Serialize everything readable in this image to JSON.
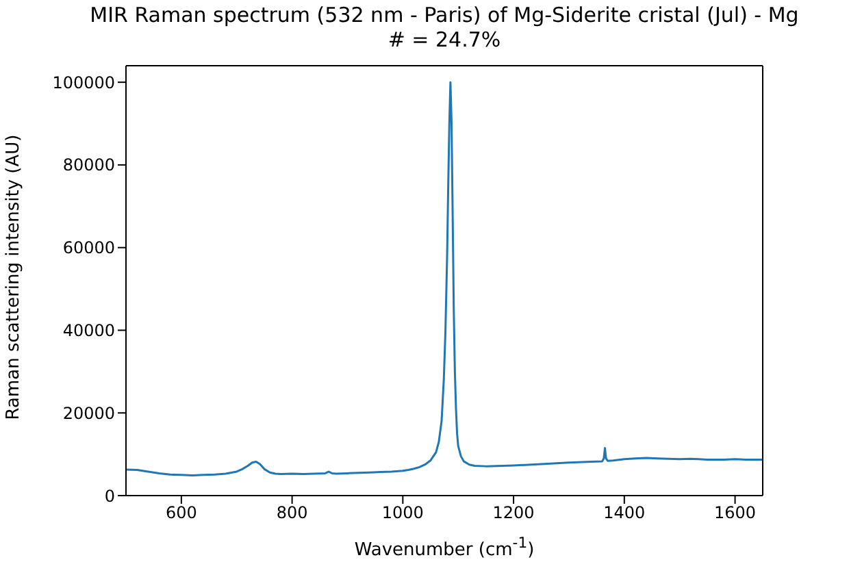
{
  "chart_data": {
    "type": "line",
    "title": "MIR Raman spectrum (532 nm - Paris) of Mg-Siderite cristal (Jul) - Mg\n# = 24.7%",
    "xlabel": "Wavenumber (cm$^{-1}$)",
    "ylabel": "Raman scattering intensity (AU)",
    "x": [
      500,
      520,
      540,
      560,
      580,
      600,
      620,
      640,
      660,
      680,
      700,
      710,
      720,
      728,
      735,
      742,
      750,
      760,
      770,
      780,
      800,
      820,
      840,
      860,
      866,
      872,
      880,
      900,
      920,
      940,
      960,
      980,
      1000,
      1010,
      1020,
      1030,
      1040,
      1050,
      1060,
      1065,
      1070,
      1074,
      1077,
      1080,
      1082,
      1084,
      1086,
      1088,
      1090,
      1092,
      1094,
      1096,
      1098,
      1100,
      1105,
      1110,
      1120,
      1130,
      1150,
      1200,
      1250,
      1300,
      1340,
      1360,
      1363,
      1365,
      1367,
      1370,
      1380,
      1400,
      1420,
      1440,
      1460,
      1480,
      1500,
      1520,
      1550,
      1580,
      1600,
      1620,
      1650
    ],
    "series": [
      {
        "color": "#1f77b4",
        "values": [
          6300,
          6200,
          5800,
          5400,
          5100,
          5000,
          4900,
          5000,
          5100,
          5300,
          5800,
          6400,
          7200,
          8000,
          8200,
          7600,
          6400,
          5600,
          5300,
          5200,
          5300,
          5200,
          5300,
          5400,
          5800,
          5400,
          5300,
          5400,
          5500,
          5600,
          5700,
          5800,
          6000,
          6200,
          6500,
          6900,
          7500,
          8500,
          10500,
          13000,
          18000,
          28000,
          40000,
          58000,
          75000,
          90000,
          100000,
          90000,
          68000,
          45000,
          30000,
          21000,
          15000,
          12000,
          9500,
          8300,
          7500,
          7200,
          7100,
          7300,
          7600,
          8000,
          8200,
          8300,
          9000,
          11500,
          9000,
          8400,
          8500,
          8800,
          9000,
          9100,
          9000,
          8900,
          8800,
          8900,
          8700,
          8700,
          8800,
          8700,
          8700
        ]
      }
    ],
    "xlim": [
      500,
      1650
    ],
    "xticks": [
      600,
      800,
      1000,
      1200,
      1400,
      1600
    ],
    "ylim": [
      0,
      104000
    ],
    "yticks": [
      0,
      20000,
      40000,
      60000,
      80000,
      100000
    ],
    "marker": "none",
    "line_style": "solid"
  }
}
